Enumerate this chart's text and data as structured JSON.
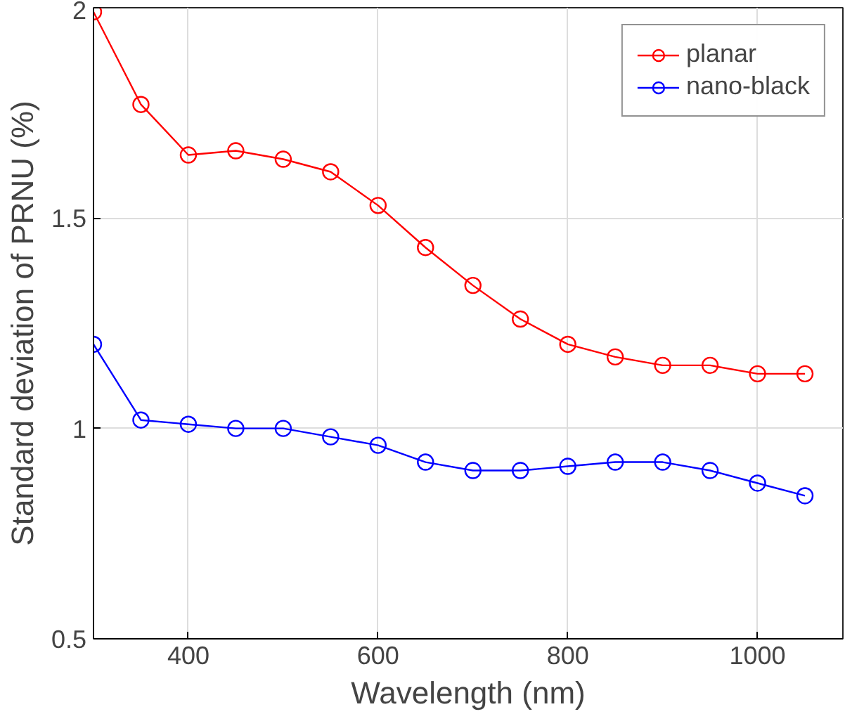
{
  "chart_data": {
    "type": "line",
    "xlabel": "Wavelength (nm)",
    "ylabel": "Standard deviation of PRNU (%)",
    "x": [
      300,
      350,
      400,
      450,
      500,
      550,
      600,
      650,
      700,
      750,
      800,
      850,
      900,
      950,
      1000,
      1050
    ],
    "series": [
      {
        "name": "planar",
        "color": "#ff0000",
        "values": [
          1.99,
          1.77,
          1.65,
          1.66,
          1.64,
          1.61,
          1.53,
          1.43,
          1.34,
          1.26,
          1.2,
          1.17,
          1.15,
          1.15,
          1.13,
          1.13
        ]
      },
      {
        "name": "nano-black",
        "color": "#0000ff",
        "values": [
          1.2,
          1.02,
          1.01,
          1.0,
          1.0,
          0.98,
          0.96,
          0.92,
          0.9,
          0.9,
          0.91,
          0.92,
          0.92,
          0.9,
          0.87,
          0.84
        ]
      }
    ],
    "xlim": [
      300,
      1090
    ],
    "ylim": [
      0.5,
      2
    ],
    "xticks": [
      400,
      600,
      800,
      1000
    ],
    "yticks": [
      0.5,
      1,
      1.5,
      2
    ],
    "grid": true,
    "legend": "top right",
    "marker": "circle",
    "line_style": "solid"
  }
}
